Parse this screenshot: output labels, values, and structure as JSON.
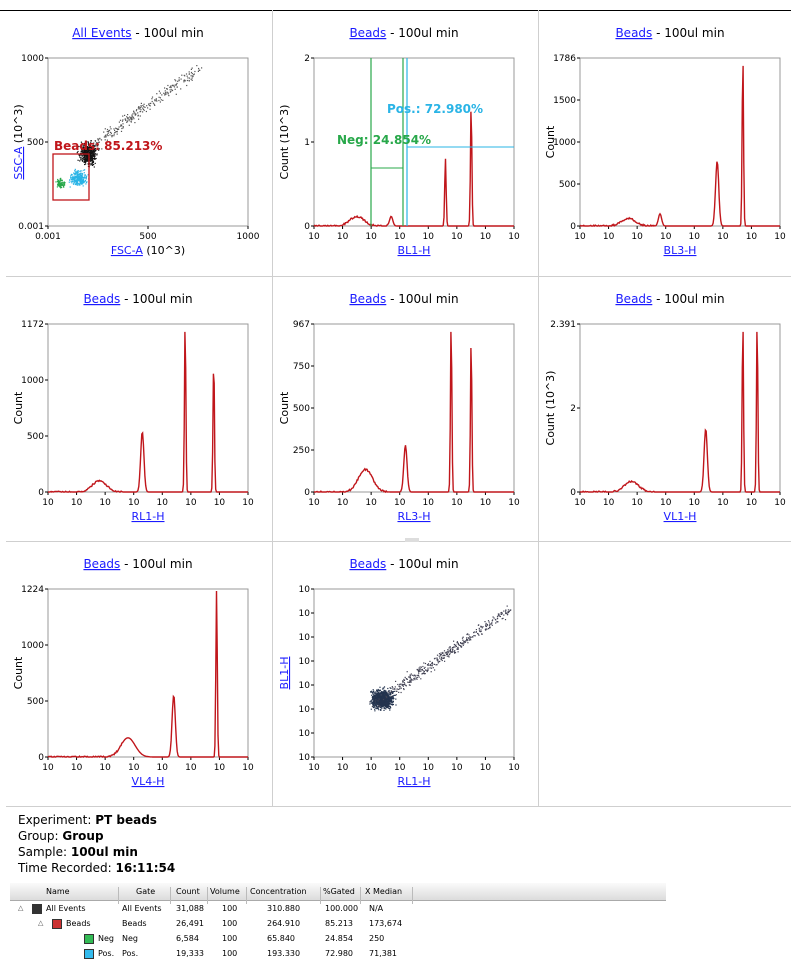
{
  "charts": [
    {
      "id": "c1",
      "type": "scatter",
      "gate_link": "All Events",
      "title_suffix": " - 100ul min",
      "xlabel": "FSC-A",
      "xunit": " (10^3)",
      "ylabel": "SSC-A",
      "yunit": " (10^3)",
      "xticks": [
        "0.001",
        "500",
        "1000"
      ],
      "yticks": [
        "0.001",
        "500",
        "1000"
      ],
      "gate_label": "Beads: 85.213%"
    },
    {
      "id": "c2",
      "type": "histogram",
      "gate_link": "Beads",
      "title_suffix": " - 100ul min",
      "xlabel": "BL1-H",
      "ylabel": "Count (10^3)",
      "yticks": [
        "0",
        "1",
        "2"
      ],
      "xticks": [
        "10",
        "10",
        "10",
        "10",
        "10",
        "10",
        "10",
        "10"
      ],
      "gate_neg": "Neg: 24.854%",
      "gate_pos": "Pos.: 72.980%"
    },
    {
      "id": "c3",
      "type": "histogram",
      "gate_link": "Beads",
      "title_suffix": " - 100ul min",
      "xlabel": "BL3-H",
      "ylabel": "Count",
      "yticks": [
        "0",
        "500",
        "1000",
        "1500",
        "1786"
      ],
      "xticks": [
        "10",
        "10",
        "10",
        "10",
        "10",
        "10",
        "10",
        "10"
      ]
    },
    {
      "id": "c4",
      "type": "histogram",
      "gate_link": "Beads",
      "title_suffix": " - 100ul min",
      "xlabel": "RL1-H",
      "ylabel": "Count",
      "yticks": [
        "0",
        "500",
        "1000",
        "1172"
      ],
      "xticks": [
        "10",
        "10",
        "10",
        "10",
        "10",
        "10",
        "10",
        "10"
      ]
    },
    {
      "id": "c5",
      "type": "histogram",
      "gate_link": "Beads",
      "title_suffix": " - 100ul min",
      "xlabel": "RL3-H",
      "ylabel": "Count",
      "yticks": [
        "0",
        "250",
        "500",
        "750",
        "967"
      ],
      "xticks": [
        "10",
        "10",
        "10",
        "10",
        "10",
        "10",
        "10",
        "10"
      ]
    },
    {
      "id": "c6",
      "type": "histogram",
      "gate_link": "Beads",
      "title_suffix": " - 100ul min",
      "xlabel": "VL1-H",
      "ylabel": "Count (10^3)",
      "yticks": [
        "0",
        "2",
        "2.391"
      ],
      "xticks": [
        "10",
        "10",
        "10",
        "10",
        "10",
        "10",
        "10",
        "10"
      ]
    },
    {
      "id": "c7",
      "type": "histogram",
      "gate_link": "Beads",
      "title_suffix": " - 100ul min",
      "xlabel": "VL4-H",
      "ylabel": "Count",
      "yticks": [
        "0",
        "500",
        "1000",
        "1224"
      ],
      "xticks": [
        "10",
        "10",
        "10",
        "10",
        "10",
        "10",
        "10",
        "10"
      ]
    },
    {
      "id": "c8",
      "type": "scatter",
      "gate_link": "Beads",
      "title_suffix": " - 100ul min",
      "xlabel": "RL1-H",
      "ylabel": "BL1-H",
      "xticks": [
        "10",
        "10",
        "10",
        "10",
        "10",
        "10",
        "10",
        "10"
      ],
      "yticks": [
        "10",
        "10",
        "10",
        "10",
        "10",
        "10",
        "10",
        "10"
      ]
    }
  ],
  "chart_data": [
    {
      "type": "scatter",
      "x_param": "FSC-A",
      "y_param": "SSC-A",
      "xlim": [
        0,
        1000
      ],
      "ylim": [
        0,
        1000
      ],
      "gate": {
        "name": "Beads",
        "percent": 85.213
      }
    },
    {
      "type": "bar",
      "x_param": "BL1-H",
      "peaks_log": [
        1.5,
        2.7,
        4.6,
        5.5
      ],
      "peak_heights": [
        0.12,
        0.12,
        0.85,
        1.5
      ],
      "ymax": 2.1,
      "gates": [
        {
          "name": "Neg",
          "percent": 24.854
        },
        {
          "name": "Pos.",
          "percent": 72.98
        }
      ]
    },
    {
      "type": "bar",
      "x_param": "BL3-H",
      "peaks_log": [
        1.7,
        2.8,
        4.8,
        5.7
      ],
      "peak_heights": [
        80,
        130,
        690,
        1786
      ],
      "ymax": 1786
    },
    {
      "type": "bar",
      "x_param": "RL1-H",
      "peaks_log": [
        1.8,
        3.3,
        4.8,
        5.8
      ],
      "peak_heights": [
        80,
        420,
        1172,
        920
      ],
      "ymax": 1172
    },
    {
      "type": "bar",
      "x_param": "RL3-H",
      "peaks_log": [
        1.8,
        3.2,
        4.8,
        5.5
      ],
      "peak_heights": [
        130,
        270,
        967,
        870
      ],
      "ymax": 967
    },
    {
      "type": "bar",
      "x_param": "VL1-H",
      "peaks_log": [
        1.8,
        4.4,
        5.7,
        6.2
      ],
      "peak_heights": [
        0.15,
        0.9,
        2.391,
        2.391
      ],
      "ymax": 2.391
    },
    {
      "type": "bar",
      "x_param": "VL4-H",
      "peaks_log": [
        2.8,
        4.4,
        5.9
      ],
      "peak_heights": [
        140,
        450,
        1224
      ],
      "ymax": 1224
    },
    {
      "type": "scatter",
      "x_param": "RL1-H",
      "y_param": "BL1-H"
    }
  ],
  "info": {
    "experiment_label": "Experiment: ",
    "experiment": "PT beads",
    "group_label": "Group: ",
    "group": "Group",
    "sample_label": "Sample: ",
    "sample": "100ul min",
    "time_label": "Time Recorded: ",
    "time": "16:11:54"
  },
  "stats": {
    "headers": [
      "Name",
      "Gate",
      "Count",
      "Volume",
      "Concentration",
      "%Gated",
      "X Median"
    ],
    "rows": [
      {
        "name": "All Events",
        "gate": "All Events",
        "count": "31,088",
        "volume": "100",
        "conc": "310.880",
        "pct": "100.000",
        "median": "N/A",
        "color": "#333333"
      },
      {
        "name": "Beads",
        "gate": "Beads",
        "count": "26,491",
        "volume": "100",
        "conc": "264.910",
        "pct": "85.213",
        "median": "173,674",
        "color": "#cc3333"
      },
      {
        "name": "Neg",
        "gate": "Neg",
        "count": "6,584",
        "volume": "100",
        "conc": "65.840",
        "pct": "24.854",
        "median": "250",
        "color": "#33bb55"
      },
      {
        "name": "Pos.",
        "gate": "Pos.",
        "count": "19,333",
        "volume": "100",
        "conc": "193.330",
        "pct": "72.980",
        "median": "71,381",
        "color": "#33bbee"
      }
    ]
  },
  "colors": {
    "hist": "#c0161b",
    "gate_red": "#c0161b",
    "gate_green": "#28a84a",
    "gate_blue": "#2ab4e6",
    "link": "#1a1aff"
  }
}
